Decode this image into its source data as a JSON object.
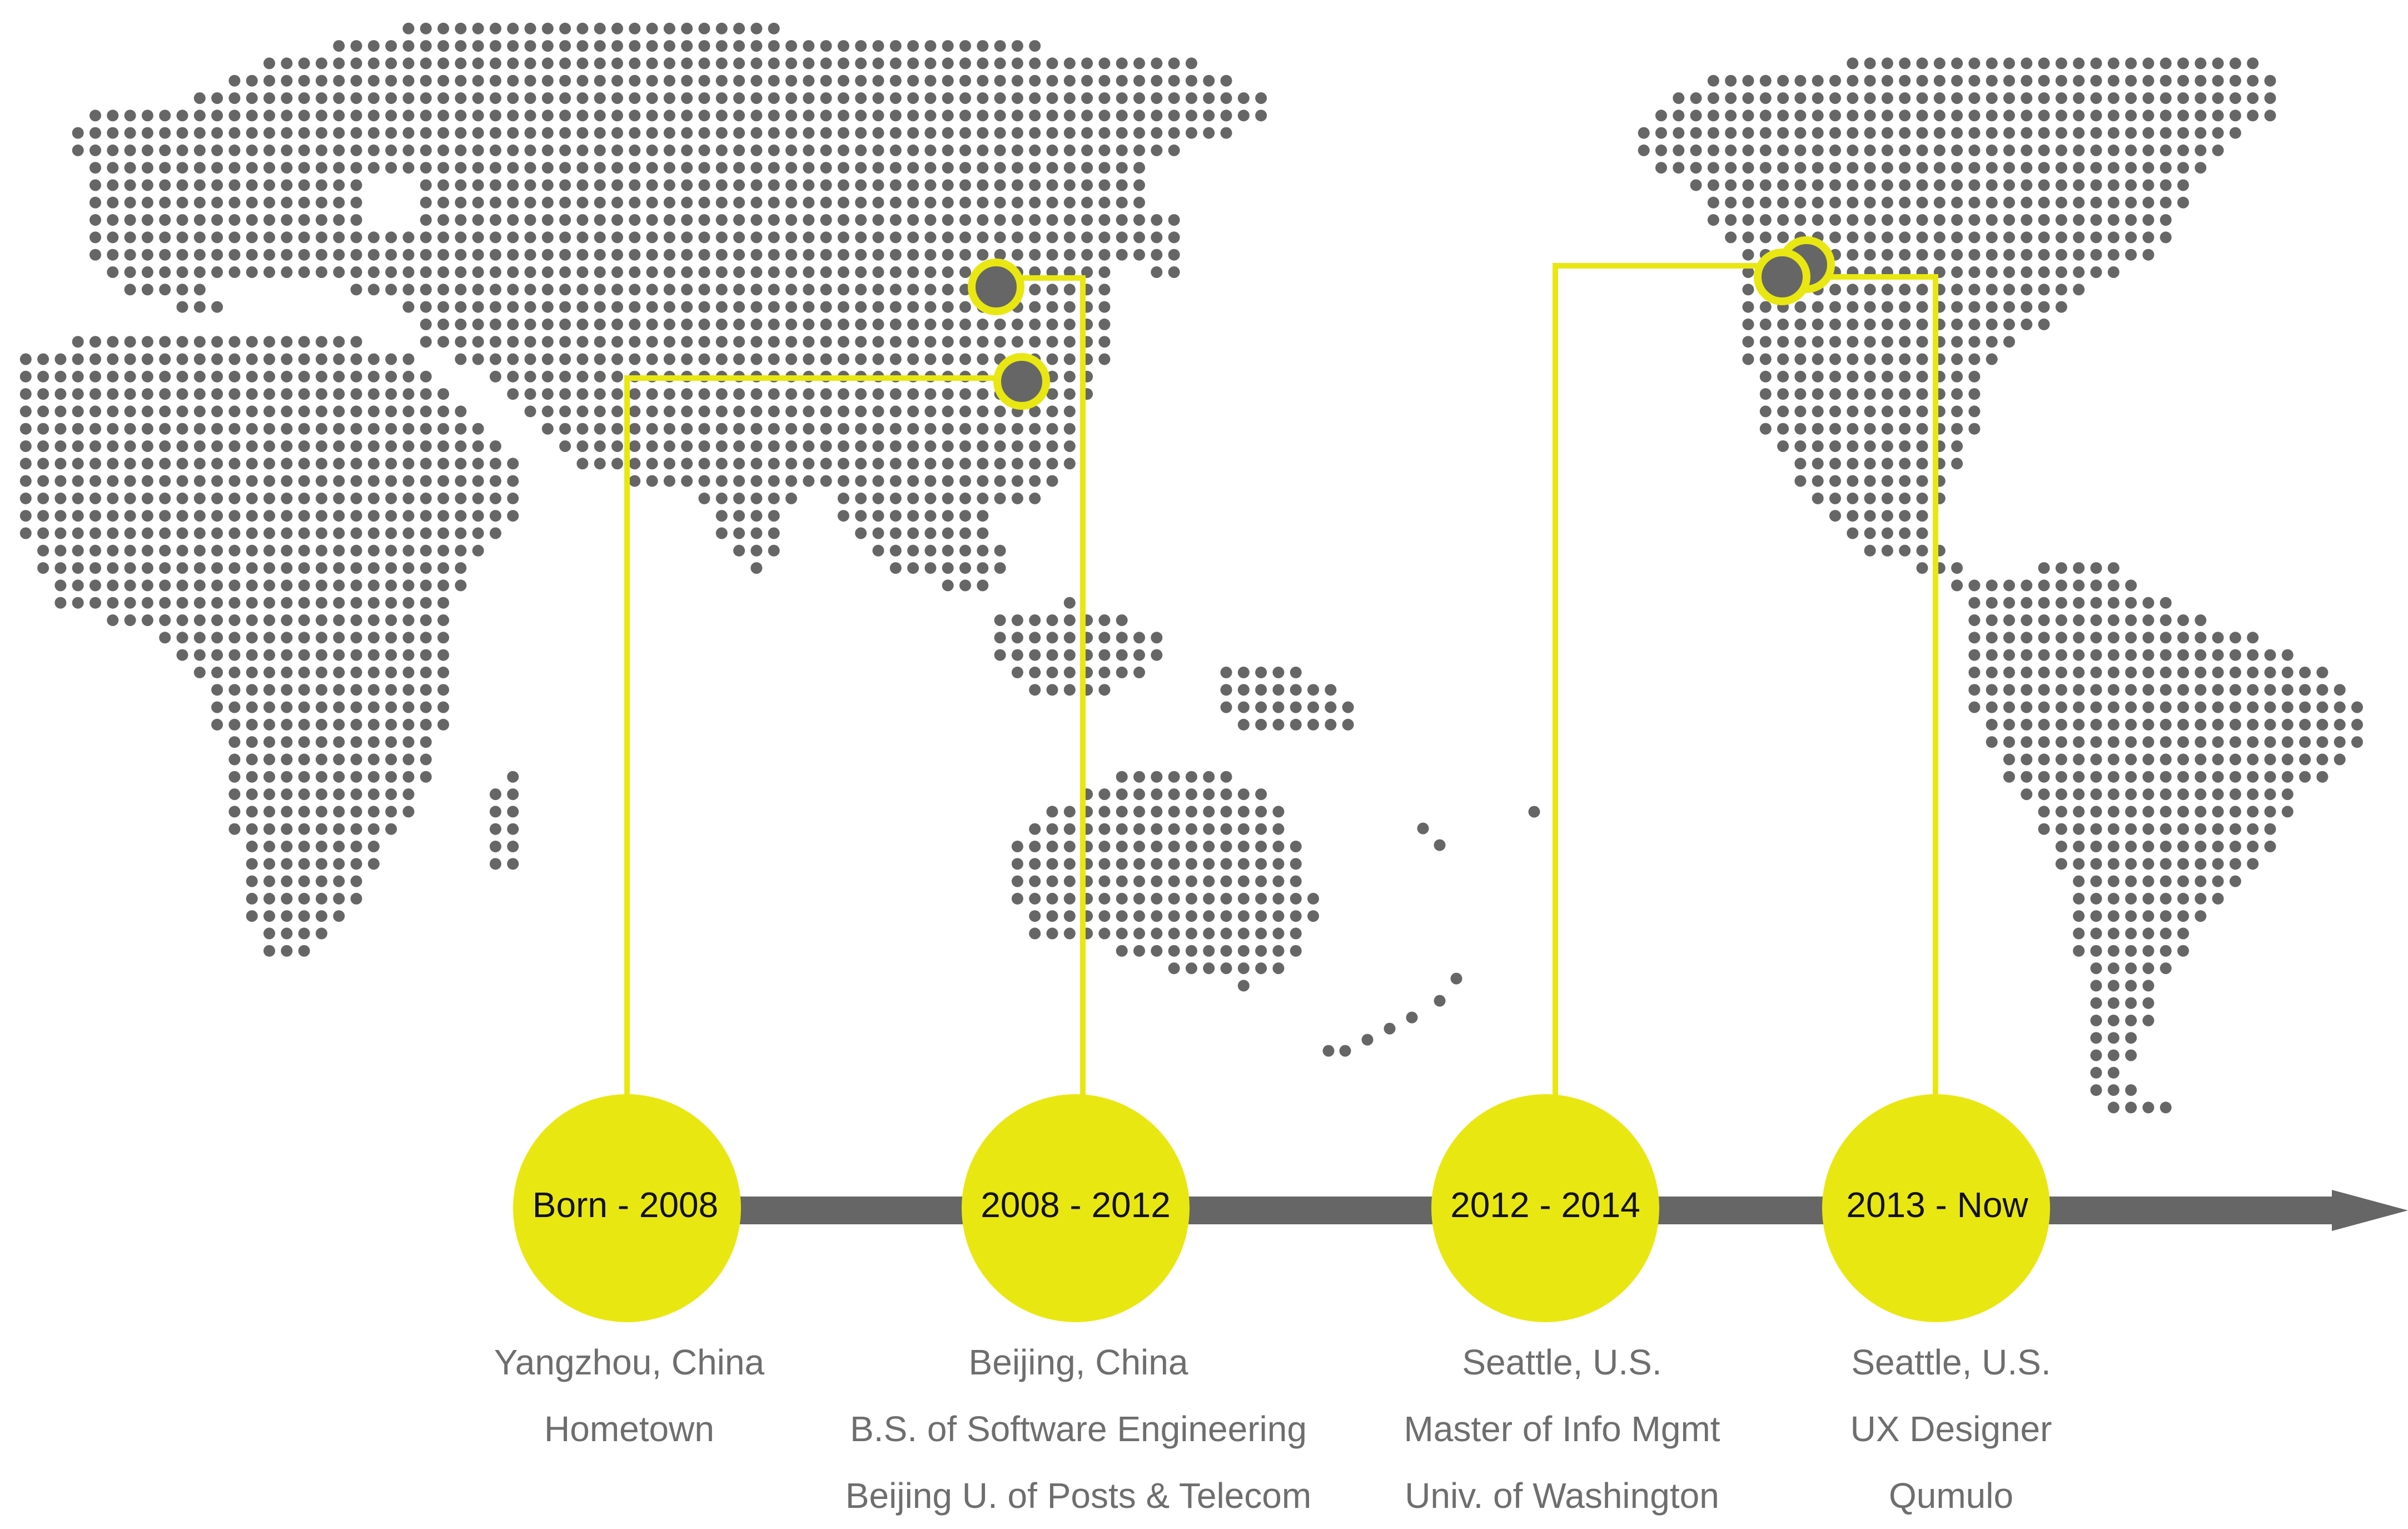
{
  "colors": {
    "map_dot": "#666666",
    "accent": "#e9e711",
    "timeline_bar": "#666666",
    "caption_text": "#6e6e6e",
    "label_text": "#111111"
  },
  "map": {
    "description_icon": "dotted-world-map"
  },
  "timeline": {
    "direction_icon": "arrow-right-icon",
    "stops": [
      {
        "period": "Born - 2008",
        "place": "Yangzhou, China",
        "line2": "Hometown",
        "line3": ""
      },
      {
        "period": "2008 - 2012",
        "place": "Beijing, China",
        "line2": "B.S. of Software Engineering",
        "line3": "Beijing U. of Posts & Telecom"
      },
      {
        "period": "2012 - 2014",
        "place": "Seattle, U.S.",
        "line2": "Master of Info Mgmt",
        "line3": "Univ. of Washington"
      },
      {
        "period": "2013 - Now",
        "place": "Seattle, U.S.",
        "line2": "UX Designer",
        "line3": "Qumulo"
      }
    ]
  }
}
